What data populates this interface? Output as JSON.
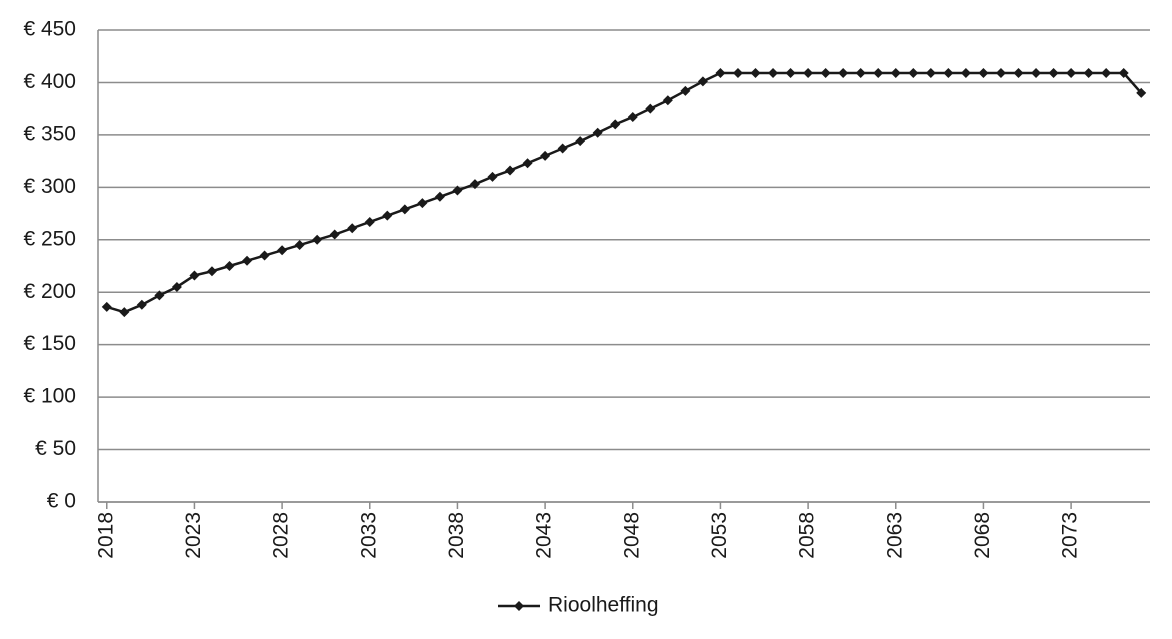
{
  "chart_data": {
    "type": "line",
    "x": [
      2018,
      2019,
      2020,
      2021,
      2022,
      2023,
      2024,
      2025,
      2026,
      2027,
      2028,
      2029,
      2030,
      2031,
      2032,
      2033,
      2034,
      2035,
      2036,
      2037,
      2038,
      2039,
      2040,
      2041,
      2042,
      2043,
      2044,
      2045,
      2046,
      2047,
      2048,
      2049,
      2050,
      2051,
      2052,
      2053,
      2054,
      2055,
      2056,
      2057,
      2058,
      2059,
      2060,
      2061,
      2062,
      2063,
      2064,
      2065,
      2066,
      2067,
      2068,
      2069,
      2070,
      2071,
      2072,
      2073,
      2074,
      2075,
      2076,
      2077
    ],
    "series": [
      {
        "name": "Rioolheffing",
        "color": "#1a1a1a",
        "values": [
          186,
          181,
          188,
          197,
          205,
          216,
          220,
          225,
          230,
          235,
          240,
          245,
          250,
          255,
          261,
          267,
          273,
          279,
          285,
          291,
          297,
          303,
          310,
          316,
          323,
          330,
          337,
          344,
          352,
          360,
          367,
          375,
          383,
          392,
          401,
          409,
          409,
          409,
          409,
          409,
          409,
          409,
          409,
          409,
          409,
          409,
          409,
          409,
          409,
          409,
          409,
          409,
          409,
          409,
          409,
          409,
          409,
          409,
          409,
          390
        ]
      }
    ],
    "xlim": [
      2017.5,
      2077.5
    ],
    "xticks": [
      2018,
      2023,
      2028,
      2033,
      2038,
      2043,
      2048,
      2053,
      2058,
      2063,
      2068,
      2073
    ],
    "ylim": [
      0,
      450
    ],
    "yticks": [
      {
        "value": 0,
        "label": "€ 0"
      },
      {
        "value": 50,
        "label": "€ 50"
      },
      {
        "value": 100,
        "label": "€ 100"
      },
      {
        "value": 150,
        "label": "€ 150"
      },
      {
        "value": 200,
        "label": "€ 200"
      },
      {
        "value": 250,
        "label": "€ 250"
      },
      {
        "value": 300,
        "label": "€ 300"
      },
      {
        "value": 350,
        "label": "€ 350"
      },
      {
        "value": 400,
        "label": "€ 400"
      },
      {
        "value": 450,
        "label": "€ 450"
      }
    ],
    "grid": true,
    "legend": "bottom"
  }
}
